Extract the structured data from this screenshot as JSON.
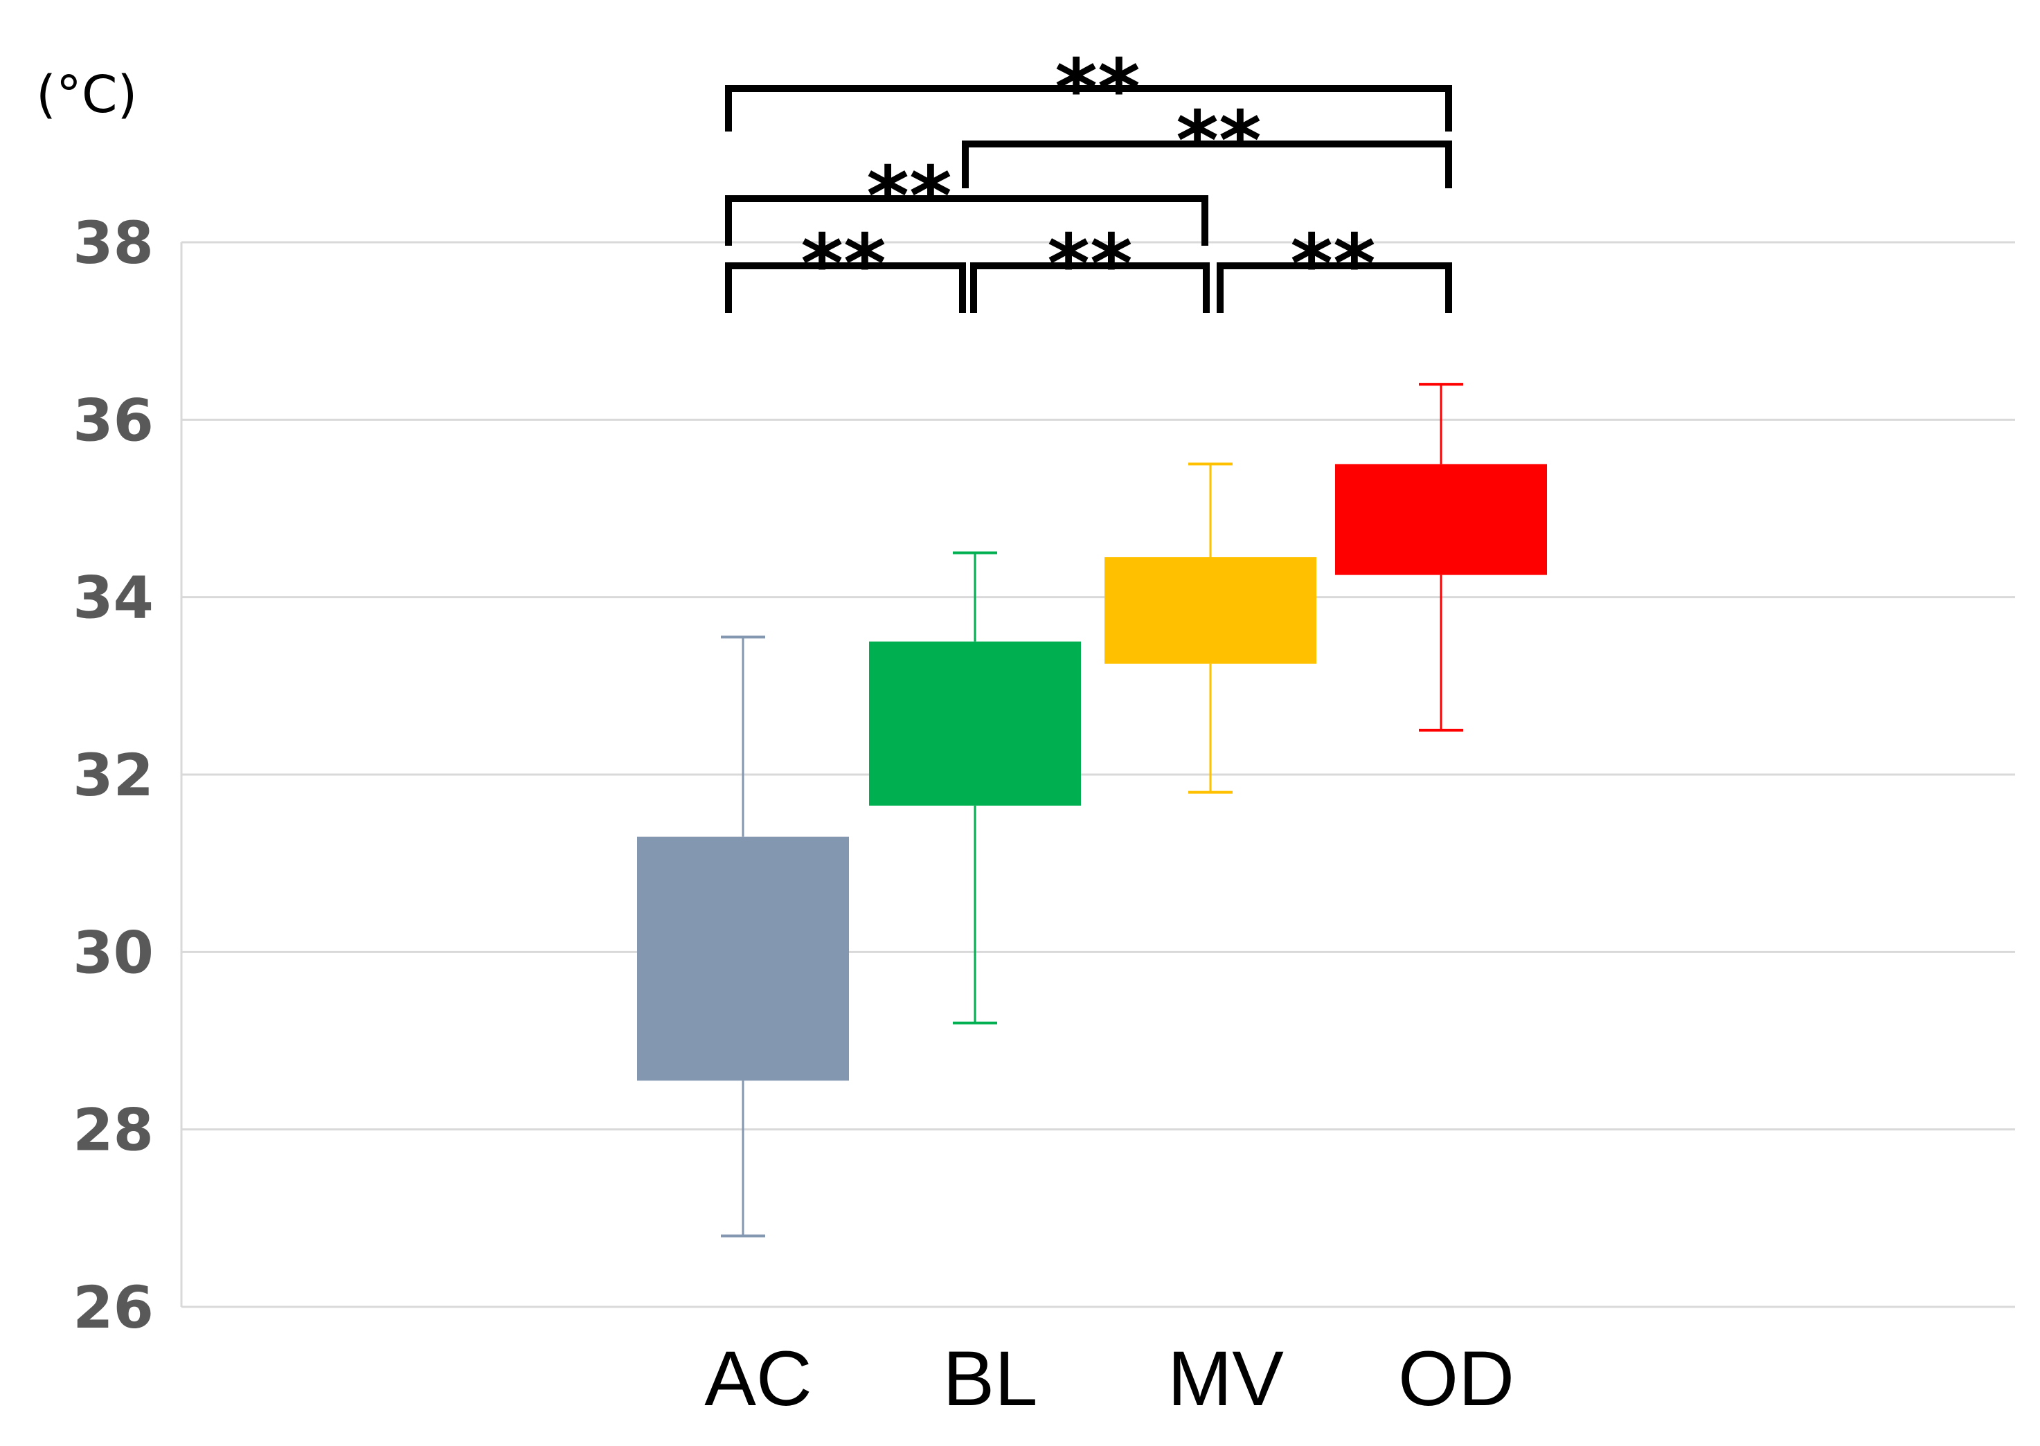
{
  "chart_data": {
    "type": "box",
    "title": "",
    "xlabel": "",
    "ylabel": "(°C)",
    "ylim": [
      26,
      38
    ],
    "yticks": [
      "26",
      "28",
      "30",
      "32",
      "34",
      "36",
      "38"
    ],
    "categories": [
      "AC",
      "BL",
      "MV",
      "OD"
    ],
    "colors": [
      "#8497b0",
      "#00b050",
      "#ffc000",
      "#ff0000"
    ],
    "boxes": [
      {
        "name": "AC",
        "min": 26.8,
        "q1": 28.55,
        "q3": 31.3,
        "max": 33.55
      },
      {
        "name": "BL",
        "min": 29.2,
        "q1": 31.65,
        "q3": 33.5,
        "max": 34.5
      },
      {
        "name": "MV",
        "min": 31.8,
        "q1": 33.25,
        "q3": 34.45,
        "max": 35.5
      },
      {
        "name": "OD",
        "min": 32.5,
        "q1": 34.25,
        "q3": 35.5,
        "max": 36.4
      }
    ],
    "significance": [
      {
        "from": "AC",
        "to": "BL",
        "label": "**"
      },
      {
        "from": "BL",
        "to": "MV",
        "label": "**"
      },
      {
        "from": "MV",
        "to": "OD",
        "label": "**"
      },
      {
        "from": "AC",
        "to": "MV",
        "label": "**"
      },
      {
        "from": "BL",
        "to": "OD",
        "label": "**"
      },
      {
        "from": "AC",
        "to": "OD",
        "label": "**"
      }
    ]
  }
}
